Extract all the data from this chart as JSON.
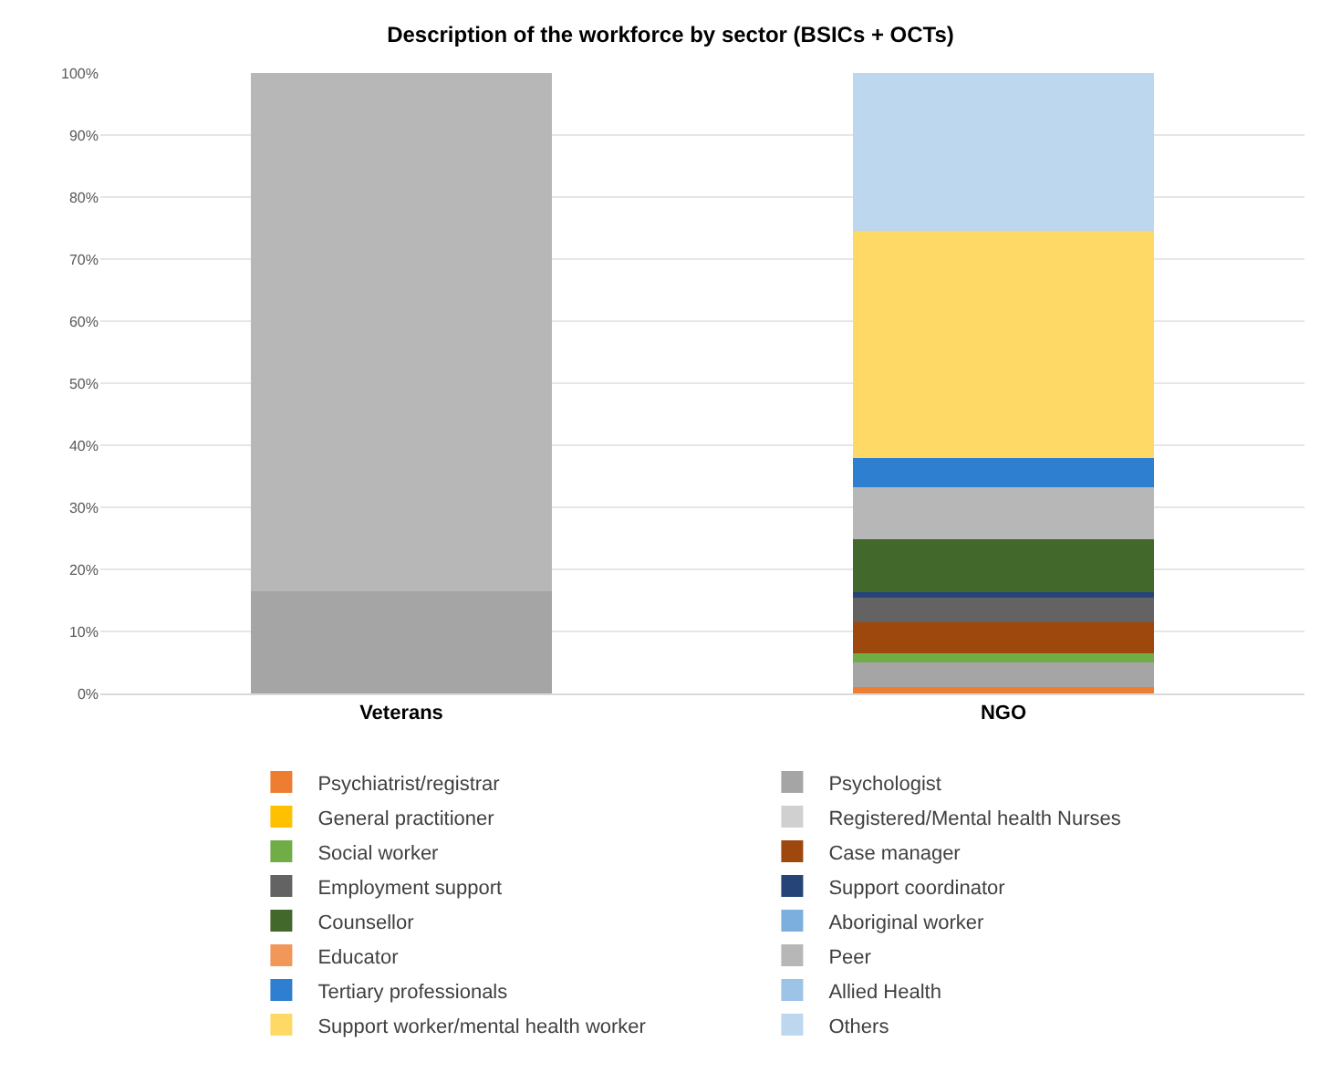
{
  "chart_data": {
    "type": "bar",
    "title": "Description of the workforce by sector (BSICs + OCTs)",
    "categories": [
      "Veterans",
      "NGO"
    ],
    "stacked": true,
    "ylim": [
      0,
      100
    ],
    "yticks": [
      {
        "value": 0,
        "label": "0%"
      },
      {
        "value": 10,
        "label": "10%"
      },
      {
        "value": 20,
        "label": "20%"
      },
      {
        "value": 30,
        "label": "30%"
      },
      {
        "value": 40,
        "label": "40%"
      },
      {
        "value": 50,
        "label": "50%"
      },
      {
        "value": 60,
        "label": "60%"
      },
      {
        "value": 70,
        "label": "70%"
      },
      {
        "value": 80,
        "label": "80%"
      },
      {
        "value": 90,
        "label": "90%"
      },
      {
        "value": 100,
        "label": "100%"
      }
    ],
    "grid": "y",
    "legend": "bottom",
    "series": [
      {
        "name": "Psychiatrist/registrar",
        "color": "#ed7d31",
        "values": [
          0,
          1
        ]
      },
      {
        "name": "Psychologist",
        "color": "#a5a5a5",
        "values": [
          16.5,
          4
        ]
      },
      {
        "name": "General practitioner",
        "color": "#ffc000",
        "values": [
          0,
          0
        ]
      },
      {
        "name": "Registered/Mental health Nurses",
        "color": "#d0d0d0",
        "values": [
          0,
          0
        ]
      },
      {
        "name": "Social worker",
        "color": "#70ad47",
        "values": [
          0,
          1.4
        ]
      },
      {
        "name": "Case manager",
        "color": "#9e480e",
        "values": [
          0,
          5.1
        ]
      },
      {
        "name": "Employment support",
        "color": "#636363",
        "values": [
          0,
          4
        ]
      },
      {
        "name": "Support coordinator",
        "color": "#264478",
        "values": [
          0,
          0.8
        ]
      },
      {
        "name": "Counsellor",
        "color": "#43682b",
        "values": [
          0,
          8.6
        ]
      },
      {
        "name": "Aboriginal worker",
        "color": "#7cafdd",
        "values": [
          0,
          0
        ]
      },
      {
        "name": "Educator",
        "color": "#f1975a",
        "values": [
          0,
          0
        ]
      },
      {
        "name": "Peer",
        "color": "#b7b7b7",
        "values": [
          83.5,
          8.3
        ]
      },
      {
        "name": "Tertiary professionals",
        "color": "#2e7fd0",
        "values": [
          0,
          4.7
        ]
      },
      {
        "name": "Allied Health",
        "color": "#9dc3e6",
        "values": [
          0,
          0
        ]
      },
      {
        "name": "Support worker/mental health worker",
        "color": "#ffd966",
        "values": [
          0,
          36.7
        ]
      },
      {
        "name": "Others",
        "color": "#bdd7ee",
        "values": [
          0,
          25.4
        ]
      }
    ]
  }
}
